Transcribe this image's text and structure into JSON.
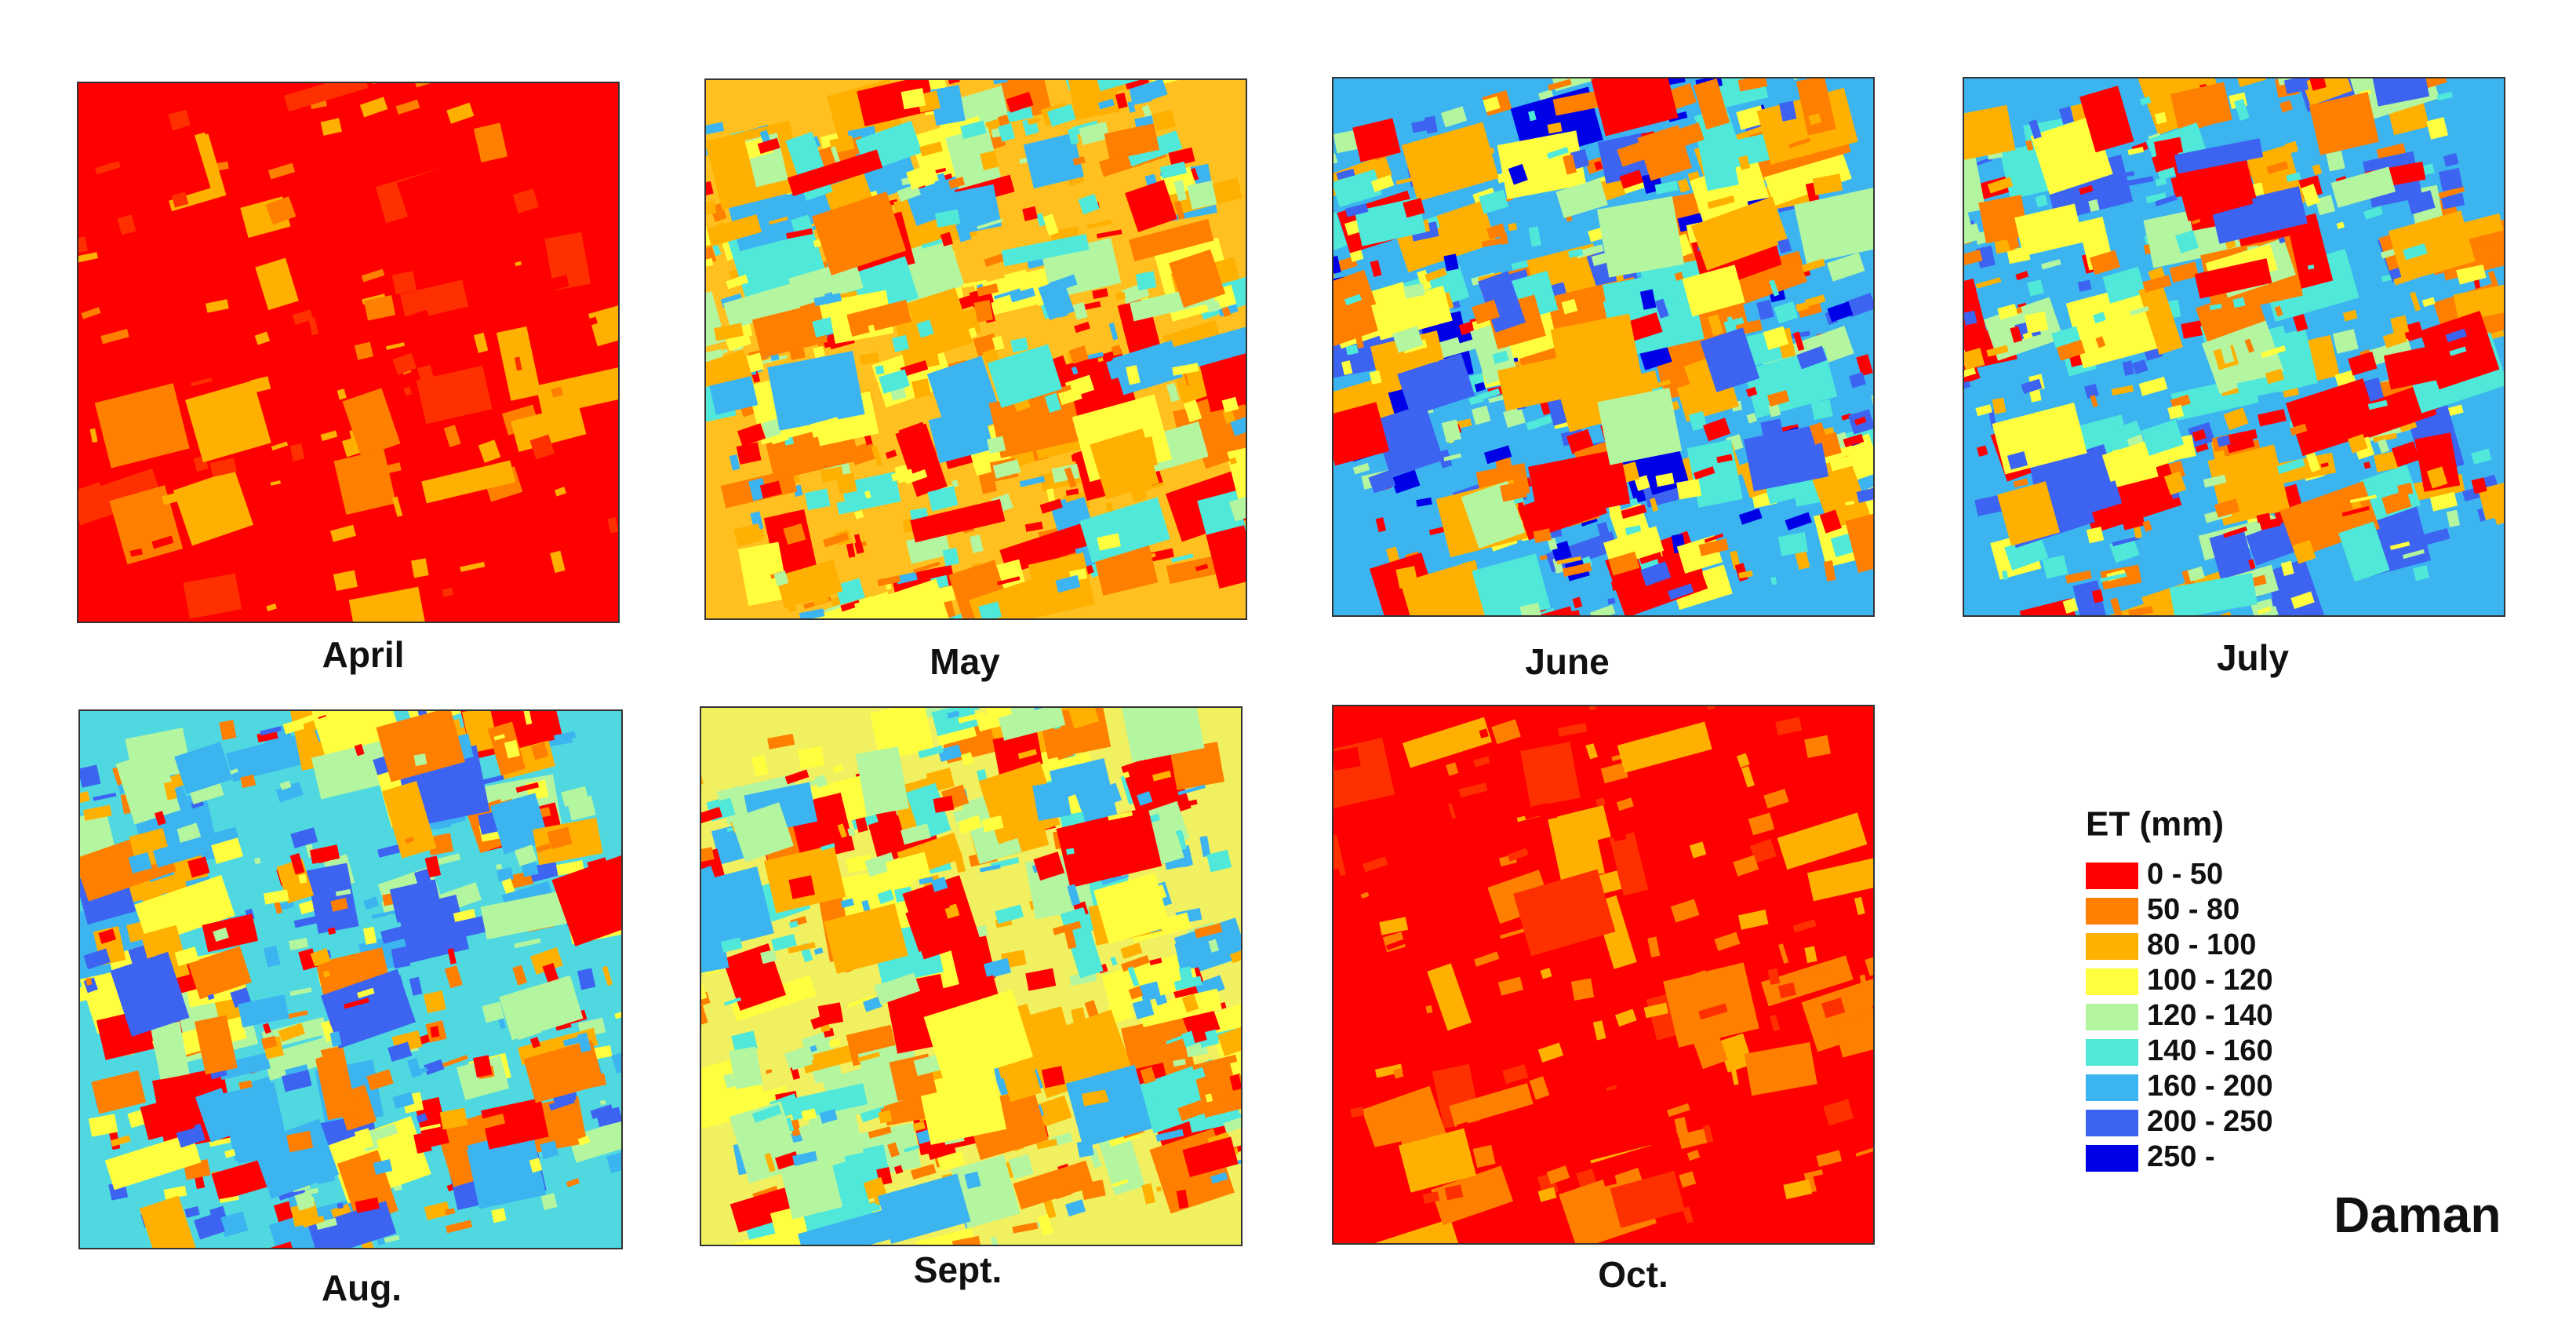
{
  "panels": [
    {
      "label": "April"
    },
    {
      "label": "May"
    },
    {
      "label": "June"
    },
    {
      "label": "July"
    },
    {
      "label": "Aug."
    },
    {
      "label": "Sept."
    },
    {
      "label": "Oct."
    }
  ],
  "legend": {
    "title": "ET (mm)",
    "items": [
      {
        "label": "0 - 50",
        "color": "#ff0000"
      },
      {
        "label": "50 - 80",
        "color": "#ff7f00"
      },
      {
        "label": "80 - 100",
        "color": "#ffb000"
      },
      {
        "label": "100 - 120",
        "color": "#ffff40"
      },
      {
        "label": "120 - 140",
        "color": "#b4f5a0"
      },
      {
        "label": "140 - 160",
        "color": "#50e8d8"
      },
      {
        "label": "160 - 200",
        "color": "#3cb4f0"
      },
      {
        "label": "200 - 250",
        "color": "#3c64f0"
      },
      {
        "label": "250 -",
        "color": "#0000e6"
      }
    ]
  },
  "region": "Daman"
}
